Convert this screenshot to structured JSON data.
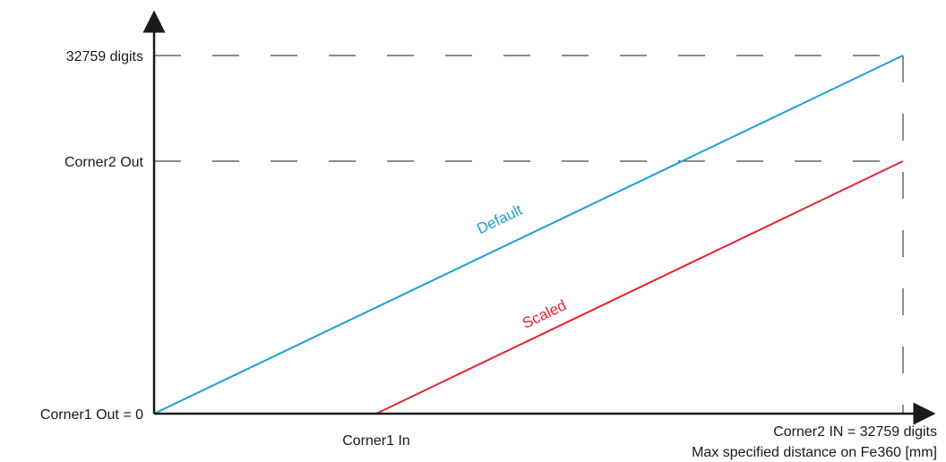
{
  "labels": {
    "y_max": "32759 digits",
    "y_corner2": "Corner2 Out",
    "y_origin": "Corner1 Out = 0",
    "x_corner1": "Corner1 In",
    "x_corner2": "Corner2  IN = 32759 digits",
    "x_note": "Max specified distance on Fe360 [mm]"
  },
  "lines": {
    "default": {
      "label": "Default",
      "color": "#1e9fd6"
    },
    "scaled": {
      "label": "Scaled",
      "color": "#e8222e"
    }
  },
  "colors": {
    "axis": "#1a1a1a",
    "guide": "#1a1a1a"
  }
}
